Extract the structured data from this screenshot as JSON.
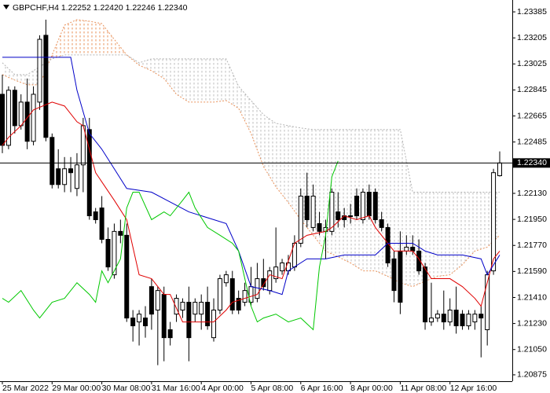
{
  "chart_data": {
    "type": "candlestick",
    "title": "GBPCHF,H4  1.22252 1.22420 1.22246 1.22340",
    "categories": [
      "25 Mar 2022",
      null,
      null,
      null,
      null,
      null,
      null,
      null,
      "29 Mar 00:00",
      null,
      null,
      null,
      null,
      null,
      null,
      null,
      "30 Mar 08:00",
      null,
      null,
      null,
      null,
      null,
      null,
      null,
      "31 Mar 16:00",
      null,
      null,
      null,
      null,
      null,
      null,
      null,
      "4 Apr 00:00",
      null,
      null,
      null,
      null,
      null,
      null,
      null,
      "5 Apr 08:00",
      null,
      null,
      null,
      null,
      null,
      null,
      null,
      "6 Apr 16:00",
      null,
      null,
      null,
      null,
      null,
      null,
      null,
      "8 Apr 00:00",
      null,
      null,
      null,
      null,
      null,
      null,
      null,
      "11 Apr 08:00",
      null,
      null,
      null,
      null,
      null,
      null,
      null,
      "12 Apr 16:00",
      null,
      null,
      null,
      null,
      null,
      null,
      null,
      null
    ],
    "open": [
      1.22815,
      1.22462,
      1.22843,
      1.22598,
      1.22761,
      1.2249,
      1.22761,
      1.23223,
      1.22517,
      1.223,
      1.22191,
      1.223,
      1.22164,
      1.22327,
      1.22571,
      1.22002,
      1.22029,
      1.21812,
      1.21567,
      1.21867,
      1.2184,
      1.21268,
      1.21241,
      1.21268,
      1.21485,
      1.21323,
      1.21431,
      1.21187,
      1.21295,
      1.21323,
      1.21377,
      1.21295,
      1.21295,
      1.21377,
      1.21132,
      1.21323,
      1.21512,
      1.2154,
      1.21404,
      1.21377,
      1.21377,
      1.21404,
      1.2154,
      1.21458,
      1.2154,
      1.21594,
      1.21594,
      1.21621,
      1.21785,
      1.22111,
      1.21894,
      1.21921,
      1.21867,
      1.21867,
      1.22002,
      1.21975,
      1.21975,
      1.22111,
      1.21948,
      1.22138,
      1.22138,
      1.21948,
      1.21894,
      1.21677,
      1.21731,
      1.21731,
      1.21758,
      1.21731,
      1.21621,
      1.21241,
      1.21268,
      1.21295,
      1.21241,
      1.21323,
      1.21295,
      1.21214,
      1.21241,
      1.21295,
      1.21187,
      1.21594,
      1.22252
    ],
    "high": [
      1.22951,
      1.2287,
      1.2287,
      1.22815,
      1.22924,
      1.2287,
      1.23223,
      1.23331,
      1.22544,
      1.22435,
      1.22381,
      1.22381,
      1.22408,
      1.22652,
      1.22652,
      1.22029,
      1.22111,
      1.21894,
      1.21921,
      1.21948,
      1.21921,
      1.21323,
      1.21323,
      1.2135,
      1.2154,
      1.21485,
      1.21485,
      1.21241,
      1.21431,
      1.21404,
      1.21485,
      1.21404,
      1.21431,
      1.21485,
      1.21404,
      1.21567,
      1.21594,
      1.21594,
      1.21458,
      1.21512,
      1.21621,
      1.21649,
      1.21677,
      1.21621,
      1.21894,
      1.21677,
      1.21704,
      1.2184,
      1.22164,
      1.22273,
      1.22191,
      1.22002,
      1.21948,
      1.22164,
      1.22138,
      1.22029,
      1.22057,
      1.22164,
      1.22164,
      1.22191,
      1.22164,
      1.22002,
      1.21921,
      1.21731,
      1.21867,
      1.2184,
      1.2184,
      1.21812,
      1.21649,
      1.21512,
      1.21323,
      1.21458,
      1.21404,
      1.21485,
      1.21323,
      1.21323,
      1.21323,
      1.2135,
      1.21594,
      1.223,
      1.2242
    ],
    "low": [
      1.22408,
      1.22435,
      1.22544,
      1.22571,
      1.22435,
      1.22462,
      1.22707,
      1.2249,
      1.22164,
      1.22164,
      1.22138,
      1.22138,
      1.22111,
      1.22138,
      1.21948,
      1.21921,
      1.21785,
      1.21594,
      1.2154,
      1.21785,
      1.21241,
      1.21105,
      1.21078,
      1.21132,
      1.21187,
      1.20942,
      1.20969,
      1.21078,
      1.21241,
      1.21268,
      1.20969,
      1.21241,
      1.21187,
      1.21187,
      1.21105,
      1.21295,
      1.21485,
      1.21295,
      1.21295,
      1.2135,
      1.2135,
      1.21377,
      1.21458,
      1.21431,
      1.21512,
      1.21567,
      1.21567,
      1.21594,
      1.21758,
      1.21894,
      1.21867,
      1.2184,
      1.21677,
      1.2184,
      1.21894,
      1.21894,
      1.21921,
      1.21948,
      1.21921,
      1.21948,
      1.21921,
      1.21867,
      1.21621,
      1.21377,
      1.21295,
      1.21704,
      1.21704,
      1.21567,
      1.21187,
      1.21214,
      1.21241,
      1.21187,
      1.21214,
      1.2116,
      1.21187,
      1.21187,
      1.21187,
      1.20996,
      1.21078,
      1.21567,
      1.22246
    ],
    "close": [
      1.22462,
      1.22843,
      1.22598,
      1.22761,
      1.2249,
      1.22815,
      1.23195,
      1.22517,
      1.22191,
      1.22191,
      1.223,
      1.22273,
      1.22327,
      1.22598,
      1.21975,
      1.21948,
      1.21812,
      1.21621,
      1.21867,
      1.2184,
      1.21268,
      1.21214,
      1.21295,
      1.21214,
      1.21295,
      1.21458,
      1.21132,
      1.21132,
      1.21404,
      1.21377,
      1.21132,
      1.21377,
      1.21377,
      1.21214,
      1.21323,
      1.2154,
      1.21567,
      1.21323,
      1.21323,
      1.21458,
      1.21485,
      1.2154,
      1.21485,
      1.21594,
      1.21621,
      1.21649,
      1.21649,
      1.21785,
      1.22111,
      1.21948,
      1.22111,
      1.21867,
      1.21894,
      1.22138,
      1.21948,
      1.21948,
      1.2197,
      1.21975,
      1.22138,
      1.21975,
      1.21948,
      1.21894,
      1.21649,
      1.21458,
      1.21377,
      1.21758,
      1.21731,
      1.21594,
      1.21241,
      1.21268,
      1.21295,
      1.21241,
      1.21323,
      1.21214,
      1.21214,
      1.21295,
      1.21295,
      1.21268,
      1.21567,
      1.22273,
      1.2234
    ],
    "up_color": "#ffffff",
    "down_color": "#000000",
    "ylim": [
      1.20831,
      1.23467
    ],
    "yticks": [
      1.23385,
      1.23205,
      1.23025,
      1.22845,
      1.22665,
      1.22485,
      {
        "value": 1.2213,
        "label": "1.22130"
      },
      {
        "value": 1.2195,
        "label": "1.21950"
      },
      {
        "value": 1.2177,
        "label": "1.21770"
      },
      {
        "value": 1.2159,
        "label": "1.21590"
      },
      {
        "value": 1.2141,
        "label": "1.21410"
      },
      {
        "value": 1.2123,
        "label": "1.21230"
      },
      {
        "value": 1.2105,
        "label": "1.21050"
      },
      1.20875
    ],
    "current_price": {
      "value": 1.2234,
      "label": "1.22340"
    },
    "cloud": {
      "x": [
        0,
        2,
        4,
        6,
        8,
        10,
        12,
        14,
        16,
        18,
        20,
        22,
        24,
        26,
        28,
        30,
        32,
        34,
        36,
        38,
        40,
        42,
        44,
        46,
        48,
        50,
        52,
        54,
        56,
        58,
        60,
        62,
        64,
        66,
        68,
        70,
        72,
        74,
        76,
        78,
        80
      ],
      "span_a": {
        "color": "#e8915a",
        "values": [
          1.22951,
          1.22913,
          1.22881,
          1.22881,
          1.23087,
          1.23293,
          1.23331,
          1.2332,
          1.23304,
          1.23195,
          1.23087,
          1.23016,
          1.22978,
          1.22924,
          1.22815,
          1.22761,
          1.22761,
          1.22761,
          1.22772,
          1.22718,
          1.22544,
          1.22316,
          1.22175,
          1.22066,
          1.21948,
          1.2184,
          1.21731,
          1.21691,
          1.21649,
          1.21594,
          1.21594,
          1.21556,
          1.21512,
          1.21485,
          1.21523,
          1.21556,
          1.21567,
          1.21637,
          1.21731,
          1.21758,
          1.2184
        ]
      },
      "span_b": {
        "color": "#b4b4b4",
        "values": [
          1.23033,
          1.22951,
          1.22951,
          1.23005,
          1.2306,
          1.23087,
          1.23087,
          1.23087,
          1.23087,
          1.23087,
          1.23087,
          1.23033,
          1.2306,
          1.2306,
          1.2306,
          1.2306,
          1.2306,
          1.2306,
          1.2306,
          1.2287,
          1.22772,
          1.22674,
          1.22614,
          1.22598,
          1.22582,
          1.22571,
          1.22571,
          1.22571,
          1.22571,
          1.22571,
          1.22571,
          1.22571,
          1.22571,
          1.22138,
          1.22138,
          1.22138,
          1.22138,
          1.22138,
          1.22138,
          1.22138,
          1.22138
        ]
      }
    },
    "lines": [
      {
        "color": "#e00000",
        "x": [
          0,
          1,
          3,
          5,
          8,
          10,
          12,
          13,
          14,
          15,
          18,
          20,
          22,
          24,
          26,
          27,
          29,
          34,
          36,
          37,
          41,
          43,
          45,
          47,
          49,
          52,
          53,
          55,
          57,
          59,
          60,
          63,
          66,
          67,
          69,
          72,
          74,
          76,
          77,
          79,
          80
        ],
        "values": [
          1.22462,
          1.22517,
          1.22598,
          1.22707,
          1.22761,
          1.22734,
          1.22625,
          1.22598,
          1.22435,
          1.22273,
          1.22082,
          1.21948,
          1.21567,
          1.2154,
          1.21431,
          1.21431,
          1.21241,
          1.21241,
          1.21323,
          1.21377,
          1.21431,
          1.21567,
          1.2154,
          1.21785,
          1.2184,
          1.21867,
          1.21894,
          1.21975,
          1.21948,
          1.21975,
          1.21894,
          1.21731,
          1.21731,
          1.21677,
          1.2154,
          1.2154,
          1.21485,
          1.21404,
          1.2135,
          1.21677,
          1.21731
        ]
      },
      {
        "color": "#0000c8",
        "x": [
          0,
          11,
          12,
          14,
          16,
          18,
          20,
          24,
          30,
          36,
          38,
          40,
          43,
          45,
          46,
          49,
          52,
          55,
          60,
          62,
          66,
          68,
          70,
          74,
          77,
          78,
          80
        ],
        "values": [
          1.23071,
          1.23071,
          1.22843,
          1.22544,
          1.22435,
          1.223,
          1.22164,
          1.22138,
          1.22002,
          1.21921,
          1.21731,
          1.21485,
          1.21458,
          1.21431,
          1.21594,
          1.21677,
          1.21677,
          1.21704,
          1.21704,
          1.21785,
          1.21785,
          1.21731,
          1.21704,
          1.21704,
          1.21677,
          1.21567,
          1.21704
        ]
      },
      {
        "color": "#00c800",
        "x": [
          0,
          1,
          3,
          5,
          6,
          8,
          10,
          12,
          14,
          15,
          16,
          17,
          18,
          19,
          20,
          21,
          22,
          24,
          26,
          27,
          29,
          30,
          31,
          33,
          35,
          37,
          38,
          40,
          41,
          42,
          44,
          46,
          48,
          50,
          51,
          52,
          53,
          54
        ],
        "values": [
          1.21404,
          1.21377,
          1.21458,
          1.21323,
          1.21268,
          1.21377,
          1.21404,
          1.21512,
          1.21431,
          1.21377,
          1.21594,
          1.21512,
          1.21594,
          1.21677,
          1.22029,
          1.22138,
          1.22138,
          1.21948,
          1.22002,
          1.21975,
          1.22082,
          1.22138,
          1.22029,
          1.21894,
          1.2184,
          1.21785,
          1.21731,
          1.2135,
          1.21241,
          1.21268,
          1.21295,
          1.21241,
          1.21268,
          1.21187,
          1.21621,
          1.2184,
          1.22245,
          1.22354
        ]
      }
    ]
  }
}
